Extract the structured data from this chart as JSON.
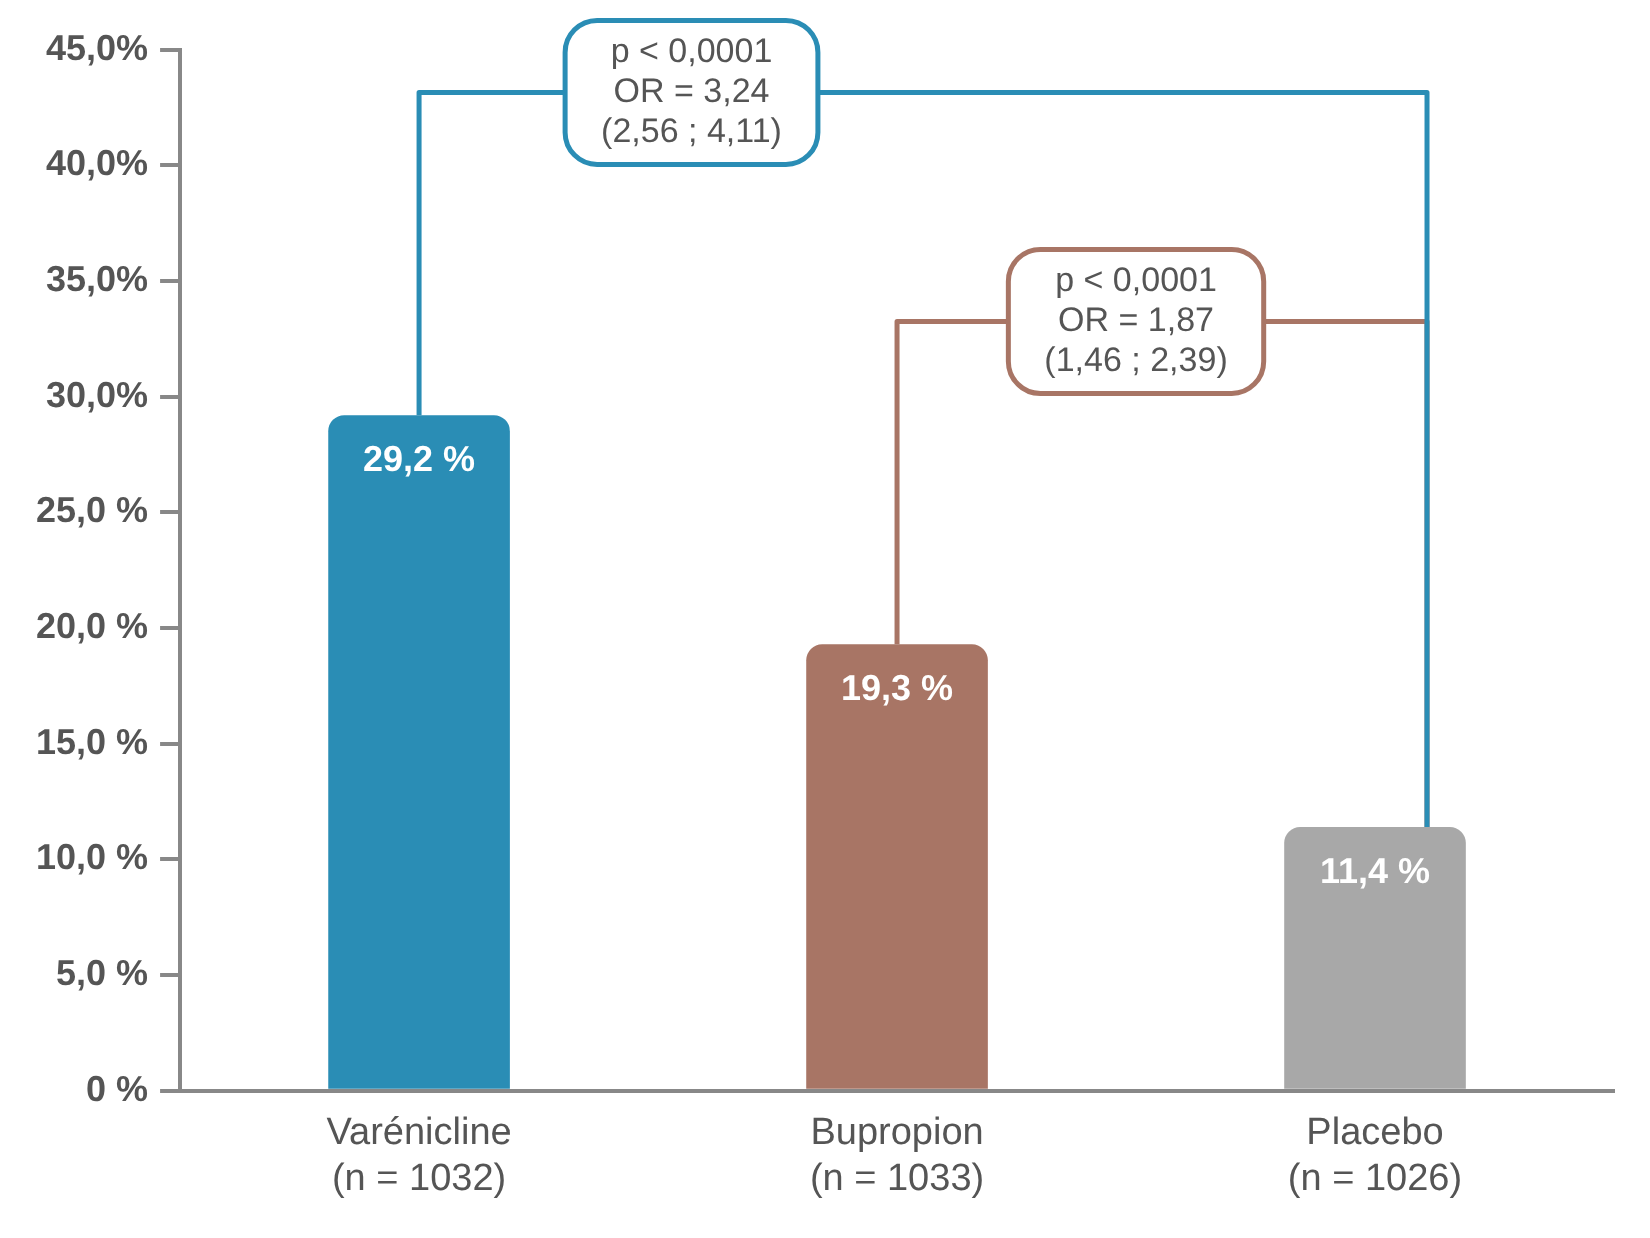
{
  "chart_data": {
    "type": "bar",
    "categories": [
      "Varénicline\n(n = 1032)",
      "Bupropion\n(n = 1033)",
      "Placebo\n(n = 1026)"
    ],
    "values": [
      29.2,
      19.3,
      11.4
    ],
    "colors": [
      "#2a8db5",
      "#a87565",
      "#a8a8a8"
    ],
    "value_labels": [
      "29,2 %",
      "19,3 %",
      "11,4 %"
    ],
    "ylim": [
      0,
      45
    ],
    "yticks": [
      {
        "value": 0,
        "label": "0 %"
      },
      {
        "value": 5,
        "label": "5,0 %"
      },
      {
        "value": 10,
        "label": "10,0 %"
      },
      {
        "value": 15,
        "label": "15,0 %"
      },
      {
        "value": 20,
        "label": "20,0 %"
      },
      {
        "value": 25,
        "label": "25,0 %"
      },
      {
        "value": 30,
        "label": "30,0%"
      },
      {
        "value": 35,
        "label": "35,0%"
      },
      {
        "value": 40,
        "label": "40,0%"
      },
      {
        "value": 45,
        "label": "45,0%"
      }
    ],
    "annotations": [
      {
        "text": "p < 0,0001\nOR = 3,24\n(2,56 ; 4,11)",
        "x": "Varénicline\n(n = 1032)",
        "y": 29.2
      },
      {
        "text": "p < 0,0001\nOR = 1,87\n(1,46 ; 2,39)",
        "x": "Bupropion\n(n = 1033)",
        "y": 19.3
      }
    ],
    "grid": false,
    "legend": false
  }
}
